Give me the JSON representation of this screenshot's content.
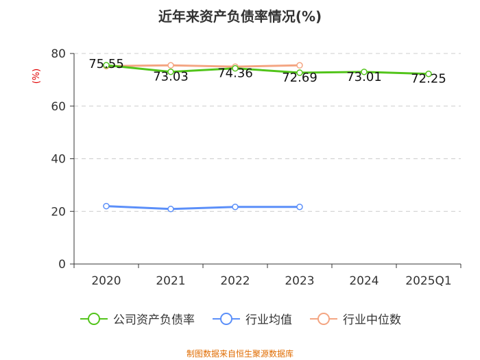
{
  "title": "近年来资产负债率情况(%)",
  "source": "制图数据来自恒生聚源数据库",
  "chart_data": {
    "type": "line",
    "title": "近年来资产负债率情况(%)",
    "ylabel": "(%)",
    "ylim": [
      0,
      80
    ],
    "yticks": [
      0,
      20,
      40,
      60,
      80
    ],
    "grid": true,
    "legend_position": "bottom",
    "categories": [
      "2020",
      "2021",
      "2022",
      "2023",
      "2024",
      "2025Q1"
    ],
    "series": [
      {
        "name": "公司资产负债率",
        "color": "#52c41a",
        "values": [
          75.55,
          73.03,
          74.36,
          72.69,
          73.01,
          72.25
        ],
        "labels": [
          "75.55",
          "73.03",
          "74.36",
          "72.69",
          "73.01",
          "72.25"
        ]
      },
      {
        "name": "行业均值",
        "color": "#5b8ff9",
        "values": [
          22.0,
          20.9,
          21.7,
          21.7,
          null,
          null
        ]
      },
      {
        "name": "行业中位数",
        "color": "#f4a582",
        "values": [
          75.2,
          75.5,
          75.0,
          75.5,
          null,
          null
        ]
      }
    ]
  }
}
